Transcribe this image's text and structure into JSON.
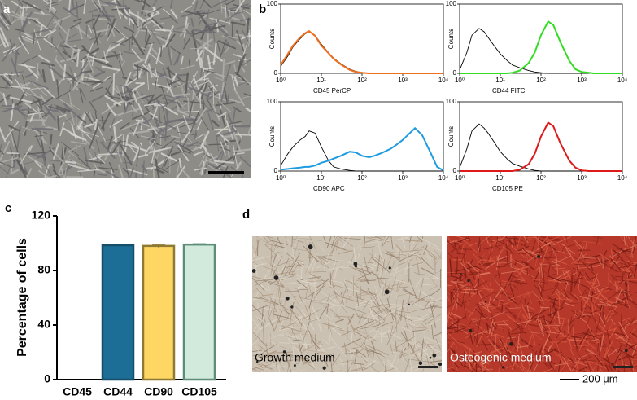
{
  "panel_labels": [
    "a",
    "b",
    "c",
    "d"
  ],
  "images": [
    {
      "caption": "Growth medium"
    },
    {
      "caption": "Osteogenic medium"
    }
  ],
  "scale_bar_label": "200 μm",
  "chart_data": [
    {
      "type": "line",
      "xlabel": "CD45 PerCP",
      "ylabel": "Counts",
      "xscale": "log",
      "xlim": [
        1,
        10000
      ],
      "ylim": [
        0,
        100
      ],
      "xticks": [
        {
          "value": 1,
          "label": "10⁰"
        },
        {
          "value": 10,
          "label": "10¹"
        },
        {
          "value": 100,
          "label": "10²"
        },
        {
          "value": 1000,
          "label": "10³"
        },
        {
          "value": 10000,
          "label": "10⁴"
        }
      ],
      "yticks": [
        0,
        100
      ],
      "x": [
        1,
        1.5,
        2,
        3,
        4,
        5,
        7,
        10,
        15,
        20,
        30,
        50,
        70,
        100,
        150,
        200,
        300,
        500,
        700,
        1000,
        1500,
        2000,
        3000,
        5000,
        7000,
        10000
      ],
      "series": [
        {
          "color": "#000000",
          "values": [
            10,
            25,
            38,
            50,
            57,
            60,
            55,
            42,
            30,
            22,
            14,
            6,
            3,
            1,
            0,
            0,
            0,
            0,
            0,
            0,
            0,
            0,
            0,
            0,
            0,
            0
          ]
        },
        {
          "color": "#f07020",
          "values": [
            12,
            28,
            40,
            52,
            58,
            61,
            54,
            40,
            29,
            21,
            13,
            5,
            2,
            1,
            0,
            0,
            0,
            0,
            0,
            0,
            0,
            0,
            0,
            0,
            0,
            0
          ]
        }
      ]
    },
    {
      "type": "line",
      "xlabel": "CD44 FITC",
      "ylabel": "Counts",
      "xscale": "log",
      "xlim": [
        1,
        10000
      ],
      "ylim": [
        0,
        100
      ],
      "xticks": [
        {
          "value": 1,
          "label": "10⁰"
        },
        {
          "value": 10,
          "label": "10¹"
        },
        {
          "value": 100,
          "label": "10²"
        },
        {
          "value": 1000,
          "label": "10³"
        },
        {
          "value": 10000,
          "label": "10⁴"
        }
      ],
      "yticks": [
        0,
        100
      ],
      "x": [
        1,
        1.5,
        2,
        3,
        4,
        5,
        7,
        10,
        15,
        20,
        30,
        50,
        70,
        100,
        150,
        200,
        300,
        500,
        700,
        1000,
        1500,
        2000,
        3000,
        5000,
        7000,
        10000
      ],
      "series": [
        {
          "color": "#000000",
          "values": [
            5,
            30,
            55,
            65,
            60,
            52,
            40,
            28,
            18,
            12,
            8,
            4,
            2,
            1,
            0,
            0,
            0,
            0,
            0,
            0,
            0,
            0,
            0,
            0,
            0,
            0
          ]
        },
        {
          "color": "#33dd22",
          "values": [
            0,
            0,
            0,
            0,
            0,
            0,
            0,
            0,
            0,
            1,
            4,
            15,
            30,
            55,
            75,
            70,
            45,
            18,
            6,
            2,
            1,
            0,
            0,
            0,
            0,
            0
          ]
        }
      ]
    },
    {
      "type": "line",
      "xlabel": "CD90 APC",
      "ylabel": "Counts",
      "xscale": "log",
      "xlim": [
        1,
        10000
      ],
      "ylim": [
        0,
        100
      ],
      "xticks": [
        {
          "value": 1,
          "label": "10⁰"
        },
        {
          "value": 10,
          "label": "10¹"
        },
        {
          "value": 100,
          "label": "10²"
        },
        {
          "value": 1000,
          "label": "10³"
        },
        {
          "value": 10000,
          "label": "10⁴"
        }
      ],
      "yticks": [
        0,
        100
      ],
      "x": [
        1,
        1.5,
        2,
        3,
        4,
        5,
        7,
        10,
        15,
        20,
        30,
        50,
        70,
        100,
        150,
        200,
        300,
        500,
        700,
        1000,
        1500,
        2000,
        3000,
        5000,
        7000,
        10000
      ],
      "series": [
        {
          "color": "#000000",
          "values": [
            8,
            25,
            35,
            45,
            50,
            58,
            55,
            35,
            15,
            6,
            3,
            1,
            0,
            0,
            0,
            0,
            0,
            0,
            0,
            0,
            0,
            0,
            0,
            0,
            0,
            0
          ]
        },
        {
          "color": "#1e9be0",
          "values": [
            2,
            3,
            4,
            5,
            6,
            6,
            8,
            12,
            15,
            18,
            22,
            28,
            27,
            22,
            20,
            22,
            26,
            32,
            38,
            45,
            55,
            62,
            52,
            25,
            6,
            1
          ]
        }
      ]
    },
    {
      "type": "line",
      "xlabel": "CD105 PE",
      "ylabel": "Counts",
      "xscale": "log",
      "xlim": [
        1,
        10000
      ],
      "ylim": [
        0,
        100
      ],
      "xticks": [
        {
          "value": 1,
          "label": "10⁰"
        },
        {
          "value": 10,
          "label": "10¹"
        },
        {
          "value": 100,
          "label": "10²"
        },
        {
          "value": 1000,
          "label": "10³"
        },
        {
          "value": 10000,
          "label": "10⁴"
        }
      ],
      "yticks": [
        0,
        100
      ],
      "x": [
        1,
        1.5,
        2,
        3,
        4,
        5,
        7,
        10,
        15,
        20,
        30,
        50,
        70,
        100,
        150,
        200,
        300,
        500,
        700,
        1000,
        1500,
        2000,
        3000,
        5000,
        7000,
        10000
      ],
      "series": [
        {
          "color": "#000000",
          "values": [
            5,
            32,
            58,
            68,
            62,
            55,
            42,
            28,
            17,
            11,
            7,
            3,
            1,
            0,
            0,
            0,
            0,
            0,
            0,
            0,
            0,
            0,
            0,
            0,
            0,
            0
          ]
        },
        {
          "color": "#dd1a1a",
          "values": [
            0,
            0,
            0,
            0,
            0,
            0,
            0,
            0,
            0,
            0,
            2,
            10,
            25,
            50,
            70,
            65,
            40,
            15,
            5,
            1,
            0,
            0,
            0,
            0,
            0,
            0
          ]
        }
      ]
    },
    {
      "type": "bar",
      "ylabel": "Percentage of cells",
      "ylim": [
        0,
        120
      ],
      "yticks": [
        0,
        40,
        80,
        120
      ],
      "categories": [
        "CD45",
        "CD44",
        "CD90",
        "CD105"
      ],
      "values": [
        0,
        98.5,
        98,
        99
      ],
      "errors": [
        0,
        0.7,
        1.2,
        0.5
      ],
      "colors": [
        "#222222",
        "#1d6e96",
        "#fdd663",
        "#d2eadc"
      ],
      "edge_colors": [
        "#000000",
        "#174f6b",
        "#8f7a33",
        "#5e8c7a"
      ]
    }
  ]
}
